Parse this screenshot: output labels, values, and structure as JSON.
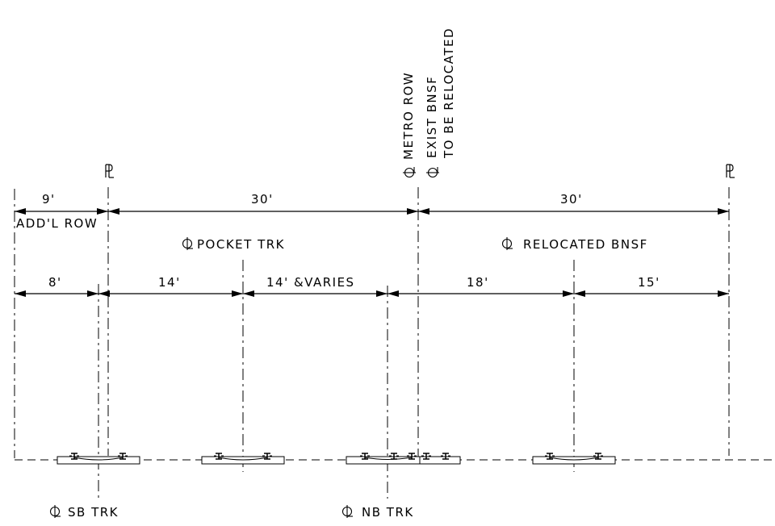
{
  "labels": {
    "pl_left": "PL",
    "pl_right": "PL",
    "metro_row": "METRO ROW",
    "exist_bnsf": "EXIST BNSF",
    "to_be_relocated": "TO BE RELOCATED",
    "addl_row": "ADD'L ROW",
    "pocket_trk": "POCKET TRK",
    "relocated_bnsf": "RELOCATED BNSF",
    "sb_trk": "SB TRK",
    "nb_trk": "NB TRK"
  },
  "dimensions_top": {
    "d1": "9'",
    "d2": "30'",
    "d3": "30'"
  },
  "dimensions_bottom": {
    "d1": "8'",
    "d2": "14'",
    "d3": "14' &VARIES",
    "d4": "18'",
    "d5": "15'"
  }
}
